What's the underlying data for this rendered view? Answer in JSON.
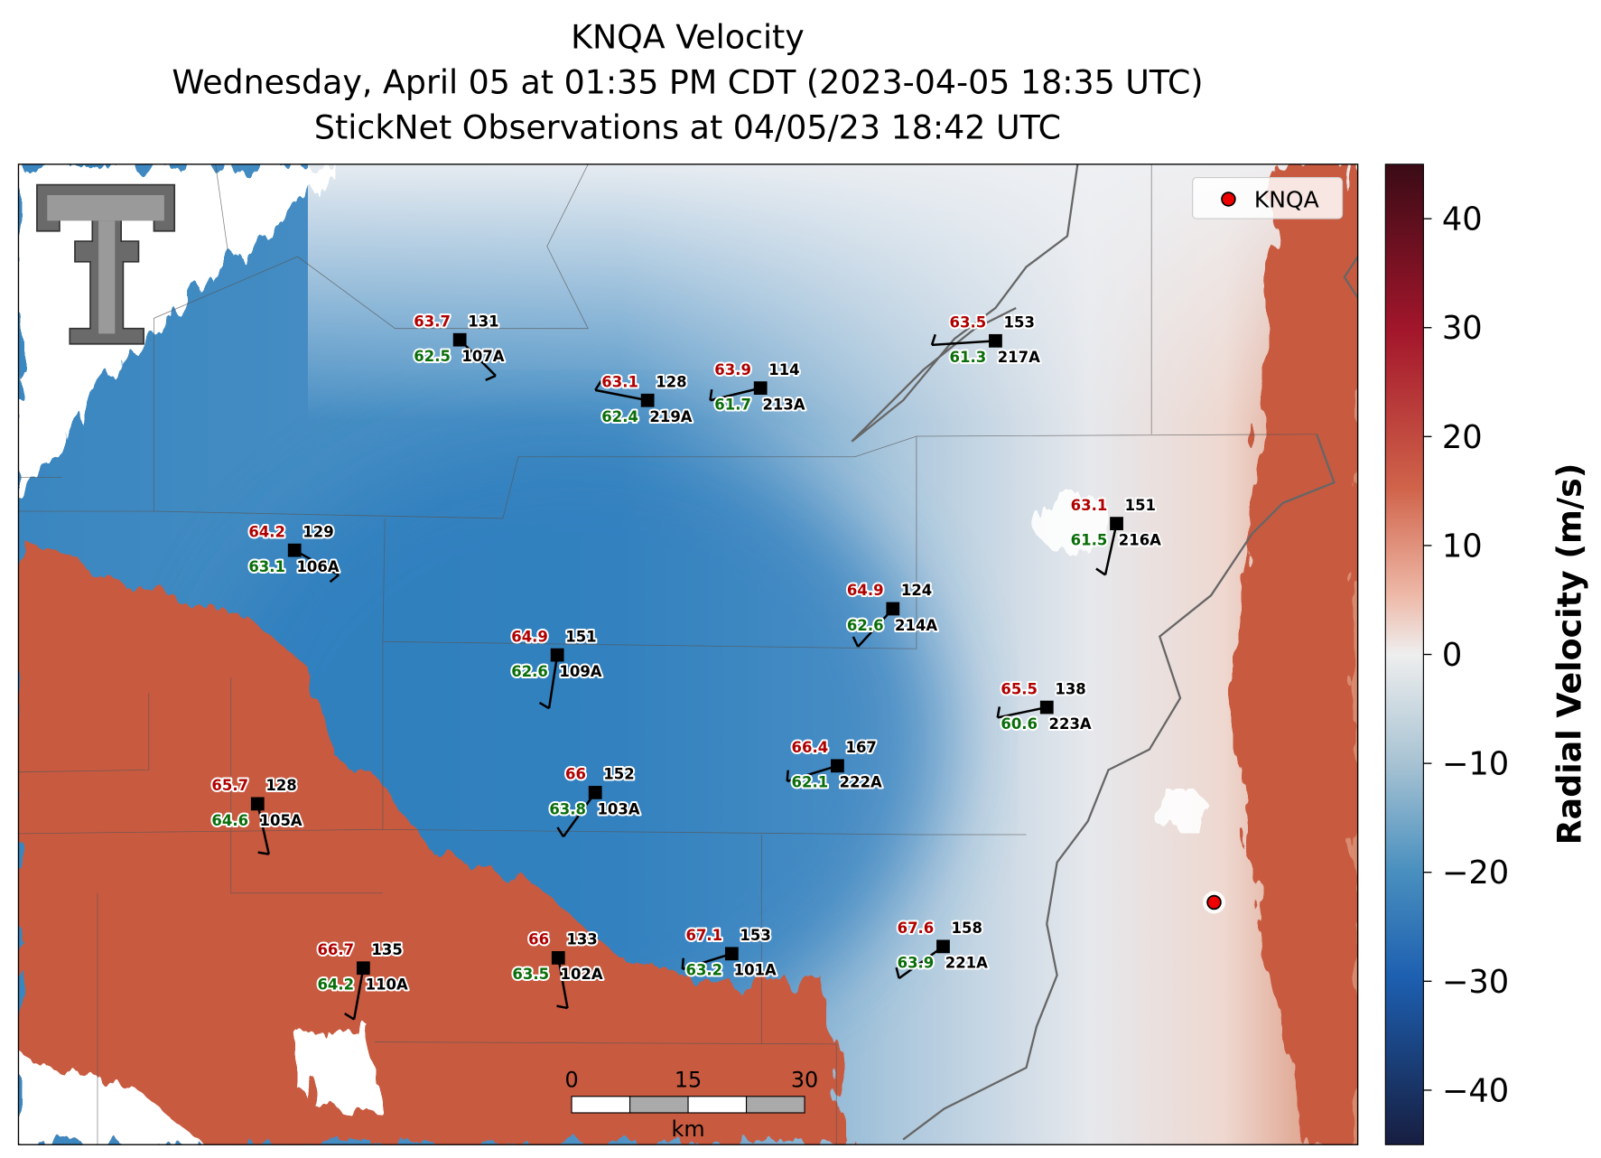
{
  "title": [
    "KNQA Velocity",
    "Wednesday, April 05 at 01:35 PM CDT (2023-04-05 18:35 UTC)",
    "StickNet Observations at 04/05/23 18:42 UTC"
  ],
  "legend": {
    "label": "KNQA"
  },
  "stations": [
    {
      "id": "107A",
      "temp": 63.7,
      "dew": 62.5,
      "dir": 131
    },
    {
      "id": "219A",
      "temp": 63.1,
      "dew": 62.4,
      "dir": 128
    },
    {
      "id": "213A",
      "temp": 63.9,
      "dew": 61.7,
      "dir": 114
    },
    {
      "id": "217A",
      "temp": 63.5,
      "dew": 61.3,
      "dir": 153
    },
    {
      "id": "106A",
      "temp": 64.2,
      "dew": 63.1,
      "dir": 129
    },
    {
      "id": "216A",
      "temp": 63.1,
      "dew": 61.5,
      "dir": 151
    },
    {
      "id": "214A",
      "temp": 64.9,
      "dew": 62.6,
      "dir": 124
    },
    {
      "id": "109A",
      "temp": 64.9,
      "dew": 62.6,
      "dir": 151
    },
    {
      "id": "223A",
      "temp": 65.5,
      "dew": 60.6,
      "dir": 138
    },
    {
      "id": "222A",
      "temp": 66.4,
      "dew": 62.1,
      "dir": 167
    },
    {
      "id": "105A",
      "temp": 65.7,
      "dew": 64.6,
      "dir": 128
    },
    {
      "id": "103A",
      "temp": 66.0,
      "dew": 63.8,
      "dir": 152
    },
    {
      "id": "110A",
      "temp": 66.7,
      "dew": 64.2,
      "dir": 135
    },
    {
      "id": "102A",
      "temp": 66.0,
      "dew": 63.5,
      "dir": 133
    },
    {
      "id": "101A",
      "temp": 67.1,
      "dew": 63.2,
      "dir": 153
    },
    {
      "id": "221A",
      "temp": 67.6,
      "dew": 63.9,
      "dir": 158
    }
  ],
  "colorbar": {
    "label": "Radial Velocity (m/s)",
    "lim": [
      -45,
      45
    ],
    "ticks": [
      40,
      30,
      20,
      10,
      0,
      {
        "value": -10,
        "label": "−10"
      },
      {
        "value": -20,
        "label": "−20"
      },
      {
        "value": -30,
        "label": "−30"
      },
      {
        "value": -40,
        "label": "−40"
      }
    ]
  },
  "scale_bar": {
    "ticks": [
      0,
      15,
      30
    ],
    "unit": "km"
  }
}
